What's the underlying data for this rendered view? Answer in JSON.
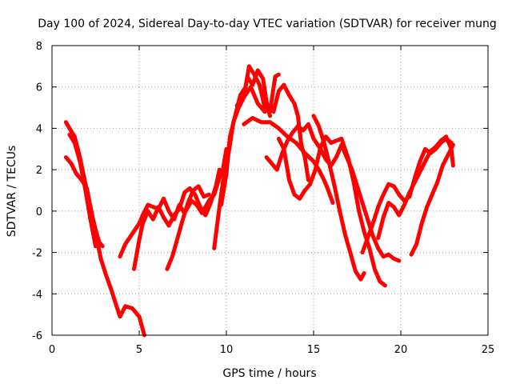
{
  "chart_data": {
    "type": "line",
    "title": "Day 100 of 2024, Sidereal Day-to-day VTEC variation (SDTVAR) for receiver mung",
    "xlabel": "GPS time / hours",
    "ylabel": "SDTVAR / TECUs",
    "xlim": [
      0,
      25
    ],
    "ylim": [
      -6,
      8
    ],
    "grid": true,
    "xticks": [
      0,
      5,
      10,
      15,
      20,
      25
    ],
    "yticks": [
      -6,
      -4,
      -2,
      0,
      2,
      4,
      6,
      8
    ],
    "series": [
      {
        "points": [
          [
            0.8,
            4.3
          ],
          [
            1.0,
            4.0
          ],
          [
            1.3,
            3.6
          ],
          [
            1.6,
            2.6
          ],
          [
            1.9,
            1.4
          ],
          [
            2.2,
            0.2
          ],
          [
            2.5,
            -1.0
          ],
          [
            2.8,
            -2.3
          ],
          [
            3.1,
            -3.1
          ],
          [
            3.4,
            -3.8
          ],
          [
            3.7,
            -4.6
          ],
          [
            3.9,
            -5.1
          ],
          [
            4.2,
            -4.6
          ],
          [
            4.6,
            -4.7
          ],
          [
            5.0,
            -5.1
          ],
          [
            5.3,
            -6.0
          ]
        ]
      },
      {
        "points": [
          [
            0.8,
            2.6
          ],
          [
            1.1,
            2.3
          ],
          [
            1.4,
            1.8
          ],
          [
            1.7,
            1.5
          ],
          [
            2.0,
            1.1
          ],
          [
            2.3,
            -0.2
          ],
          [
            2.5,
            -0.9
          ],
          [
            2.7,
            -1.5
          ],
          [
            2.9,
            -1.7
          ]
        ]
      },
      {
        "points": [
          [
            1.0,
            3.7
          ],
          [
            1.3,
            3.3
          ],
          [
            1.6,
            2.4
          ],
          [
            1.9,
            1.1
          ],
          [
            2.2,
            -0.4
          ],
          [
            2.5,
            -1.7
          ]
        ]
      },
      {
        "points": [
          [
            3.9,
            -2.2
          ],
          [
            4.2,
            -1.6
          ],
          [
            4.6,
            -1.1
          ],
          [
            5.0,
            -0.6
          ],
          [
            5.2,
            -0.2
          ],
          [
            5.5,
            0.3
          ],
          [
            5.8,
            0.2
          ],
          [
            6.1,
            0.1
          ],
          [
            6.4,
            0.6
          ],
          [
            6.7,
            0.0
          ],
          [
            7.0,
            -0.4
          ],
          [
            7.3,
            0.3
          ],
          [
            7.6,
            -0.1
          ],
          [
            8.0,
            0.5
          ],
          [
            8.3,
            0.3
          ],
          [
            8.6,
            -0.1
          ],
          [
            9.0,
            0.5
          ],
          [
            9.3,
            0.8
          ],
          [
            9.6,
            1.6
          ],
          [
            9.8,
            2.0
          ],
          [
            10.0,
            3.0
          ]
        ]
      },
      {
        "points": [
          [
            4.7,
            -2.8
          ],
          [
            5.0,
            -1.4
          ],
          [
            5.2,
            -0.6
          ],
          [
            5.5,
            0.0
          ],
          [
            5.8,
            -0.4
          ],
          [
            6.1,
            0.2
          ],
          [
            6.4,
            -0.3
          ],
          [
            6.7,
            -0.7
          ],
          [
            7.0,
            -0.2
          ],
          [
            7.3,
            0.1
          ],
          [
            7.6,
            0.9
          ],
          [
            7.9,
            1.1
          ],
          [
            8.2,
            0.8
          ],
          [
            8.5,
            0.2
          ],
          [
            8.8,
            -0.2
          ],
          [
            9.1,
            0.4
          ],
          [
            9.4,
            1.2
          ],
          [
            9.6,
            2.0
          ]
        ]
      },
      {
        "points": [
          [
            6.6,
            -2.8
          ],
          [
            6.9,
            -2.2
          ],
          [
            7.2,
            -1.3
          ],
          [
            7.5,
            -0.4
          ],
          [
            7.8,
            0.4
          ],
          [
            8.1,
            1.0
          ],
          [
            8.4,
            1.2
          ],
          [
            8.7,
            0.7
          ],
          [
            9.0,
            0.8
          ]
        ]
      },
      {
        "points": [
          [
            9.3,
            -1.8
          ],
          [
            9.6,
            0.2
          ],
          [
            9.8,
            1.4
          ],
          [
            10.0,
            2.2
          ],
          [
            10.2,
            3.2
          ],
          [
            10.4,
            4.3
          ],
          [
            10.7,
            5.0
          ],
          [
            11.0,
            5.5
          ],
          [
            11.2,
            6.5
          ],
          [
            11.5,
            6.1
          ],
          [
            11.8,
            6.8
          ],
          [
            12.1,
            6.4
          ],
          [
            12.3,
            5.3
          ],
          [
            12.5,
            4.6
          ]
        ]
      },
      {
        "points": [
          [
            9.7,
            0.3
          ],
          [
            10.0,
            1.8
          ],
          [
            10.2,
            3.6
          ],
          [
            10.5,
            4.6
          ],
          [
            10.8,
            5.6
          ],
          [
            11.1,
            6.0
          ],
          [
            11.3,
            7.0
          ],
          [
            11.6,
            6.6
          ],
          [
            11.9,
            6.1
          ],
          [
            12.2,
            5.0
          ],
          [
            12.5,
            4.8
          ],
          [
            12.8,
            6.5
          ],
          [
            13.0,
            6.6
          ]
        ]
      },
      {
        "points": [
          [
            10.6,
            5.1
          ],
          [
            11.0,
            5.5
          ],
          [
            11.4,
            6.0
          ],
          [
            11.8,
            5.2
          ],
          [
            12.2,
            4.8
          ]
        ]
      },
      {
        "points": [
          [
            11.0,
            4.2
          ],
          [
            11.5,
            4.5
          ],
          [
            12.0,
            4.3
          ],
          [
            12.5,
            4.3
          ],
          [
            13.0,
            4.0
          ],
          [
            13.5,
            3.6
          ],
          [
            14.0,
            3.3
          ],
          [
            14.5,
            2.8
          ],
          [
            15.0,
            2.4
          ],
          [
            15.3,
            2.0
          ],
          [
            15.6,
            1.5
          ],
          [
            15.8,
            1.1
          ],
          [
            16.1,
            0.4
          ]
        ]
      },
      {
        "points": [
          [
            12.3,
            2.6
          ],
          [
            12.6,
            2.3
          ],
          [
            12.9,
            2.0
          ],
          [
            13.2,
            2.8
          ],
          [
            13.5,
            3.4
          ],
          [
            13.8,
            3.8
          ],
          [
            14.1,
            4.1
          ],
          [
            14.4,
            3.9
          ],
          [
            14.7,
            4.2
          ],
          [
            15.0,
            3.5
          ],
          [
            15.4,
            3.0
          ],
          [
            15.7,
            2.5
          ],
          [
            16.0,
            2.2
          ],
          [
            16.3,
            2.6
          ],
          [
            16.6,
            3.2
          ],
          [
            16.9,
            2.6
          ],
          [
            17.2,
            2.0
          ],
          [
            17.5,
            1.2
          ],
          [
            17.8,
            0.4
          ],
          [
            18.1,
            -0.4
          ],
          [
            18.4,
            -1.2
          ],
          [
            18.7,
            -1.8
          ],
          [
            19.0,
            -2.2
          ],
          [
            19.3,
            -2.1
          ],
          [
            19.6,
            -2.3
          ],
          [
            19.9,
            -2.4
          ]
        ]
      },
      {
        "points": [
          [
            12.7,
            4.8
          ],
          [
            13.0,
            5.8
          ],
          [
            13.3,
            6.1
          ],
          [
            13.6,
            5.6
          ],
          [
            13.9,
            5.2
          ],
          [
            14.1,
            4.6
          ],
          [
            14.3,
            3.2
          ],
          [
            14.5,
            2.6
          ],
          [
            14.7,
            1.5
          ]
        ]
      },
      {
        "points": [
          [
            13.0,
            3.5
          ],
          [
            13.3,
            3.0
          ],
          [
            13.6,
            1.5
          ],
          [
            13.9,
            0.8
          ],
          [
            14.2,
            0.6
          ],
          [
            14.5,
            1.0
          ],
          [
            14.8,
            1.3
          ],
          [
            15.1,
            2.0
          ],
          [
            15.4,
            3.1
          ],
          [
            15.7,
            3.6
          ],
          [
            16.0,
            3.3
          ],
          [
            16.3,
            3.4
          ],
          [
            16.6,
            3.5
          ],
          [
            17.0,
            2.5
          ],
          [
            17.3,
            1.4
          ],
          [
            17.6,
            0.0
          ],
          [
            17.9,
            -1.0
          ],
          [
            18.2,
            -1.8
          ],
          [
            18.5,
            -2.8
          ],
          [
            18.8,
            -3.4
          ],
          [
            19.1,
            -3.6
          ]
        ]
      },
      {
        "points": [
          [
            15.0,
            4.6
          ],
          [
            15.3,
            4.1
          ],
          [
            15.6,
            3.3
          ],
          [
            15.9,
            2.3
          ],
          [
            16.2,
            1.2
          ],
          [
            16.5,
            0.0
          ],
          [
            16.8,
            -1.1
          ],
          [
            17.1,
            -2.0
          ],
          [
            17.4,
            -2.9
          ],
          [
            17.7,
            -3.3
          ],
          [
            17.9,
            -3.0
          ]
        ]
      },
      {
        "points": [
          [
            17.8,
            -2.0
          ],
          [
            18.1,
            -1.3
          ],
          [
            18.4,
            -0.6
          ],
          [
            18.7,
            0.2
          ],
          [
            19.0,
            0.8
          ],
          [
            19.3,
            1.3
          ],
          [
            19.6,
            1.2
          ],
          [
            19.9,
            0.8
          ],
          [
            20.2,
            0.5
          ],
          [
            20.5,
            0.7
          ],
          [
            20.8,
            1.6
          ],
          [
            21.1,
            2.4
          ],
          [
            21.4,
            3.0
          ],
          [
            21.7,
            2.8
          ],
          [
            22.0,
            3.0
          ],
          [
            22.3,
            3.3
          ],
          [
            22.6,
            3.5
          ],
          [
            22.9,
            3.3
          ]
        ]
      },
      {
        "points": [
          [
            18.7,
            -1.3
          ],
          [
            19.0,
            -0.3
          ],
          [
            19.3,
            0.4
          ],
          [
            19.6,
            0.2
          ],
          [
            19.9,
            -0.2
          ],
          [
            20.2,
            0.3
          ],
          [
            20.5,
            0.9
          ],
          [
            20.8,
            1.4
          ],
          [
            21.1,
            1.9
          ],
          [
            21.4,
            2.4
          ],
          [
            21.7,
            2.9
          ],
          [
            22.0,
            3.1
          ],
          [
            22.3,
            3.4
          ],
          [
            22.6,
            3.6
          ],
          [
            22.9,
            3.0
          ],
          [
            23.0,
            2.2
          ]
        ]
      },
      {
        "points": [
          [
            20.6,
            -2.1
          ],
          [
            20.9,
            -1.6
          ],
          [
            21.2,
            -0.6
          ],
          [
            21.5,
            0.2
          ],
          [
            21.8,
            0.8
          ],
          [
            22.1,
            1.4
          ],
          [
            22.4,
            2.2
          ],
          [
            22.7,
            2.7
          ],
          [
            23.0,
            3.2
          ]
        ]
      }
    ]
  }
}
